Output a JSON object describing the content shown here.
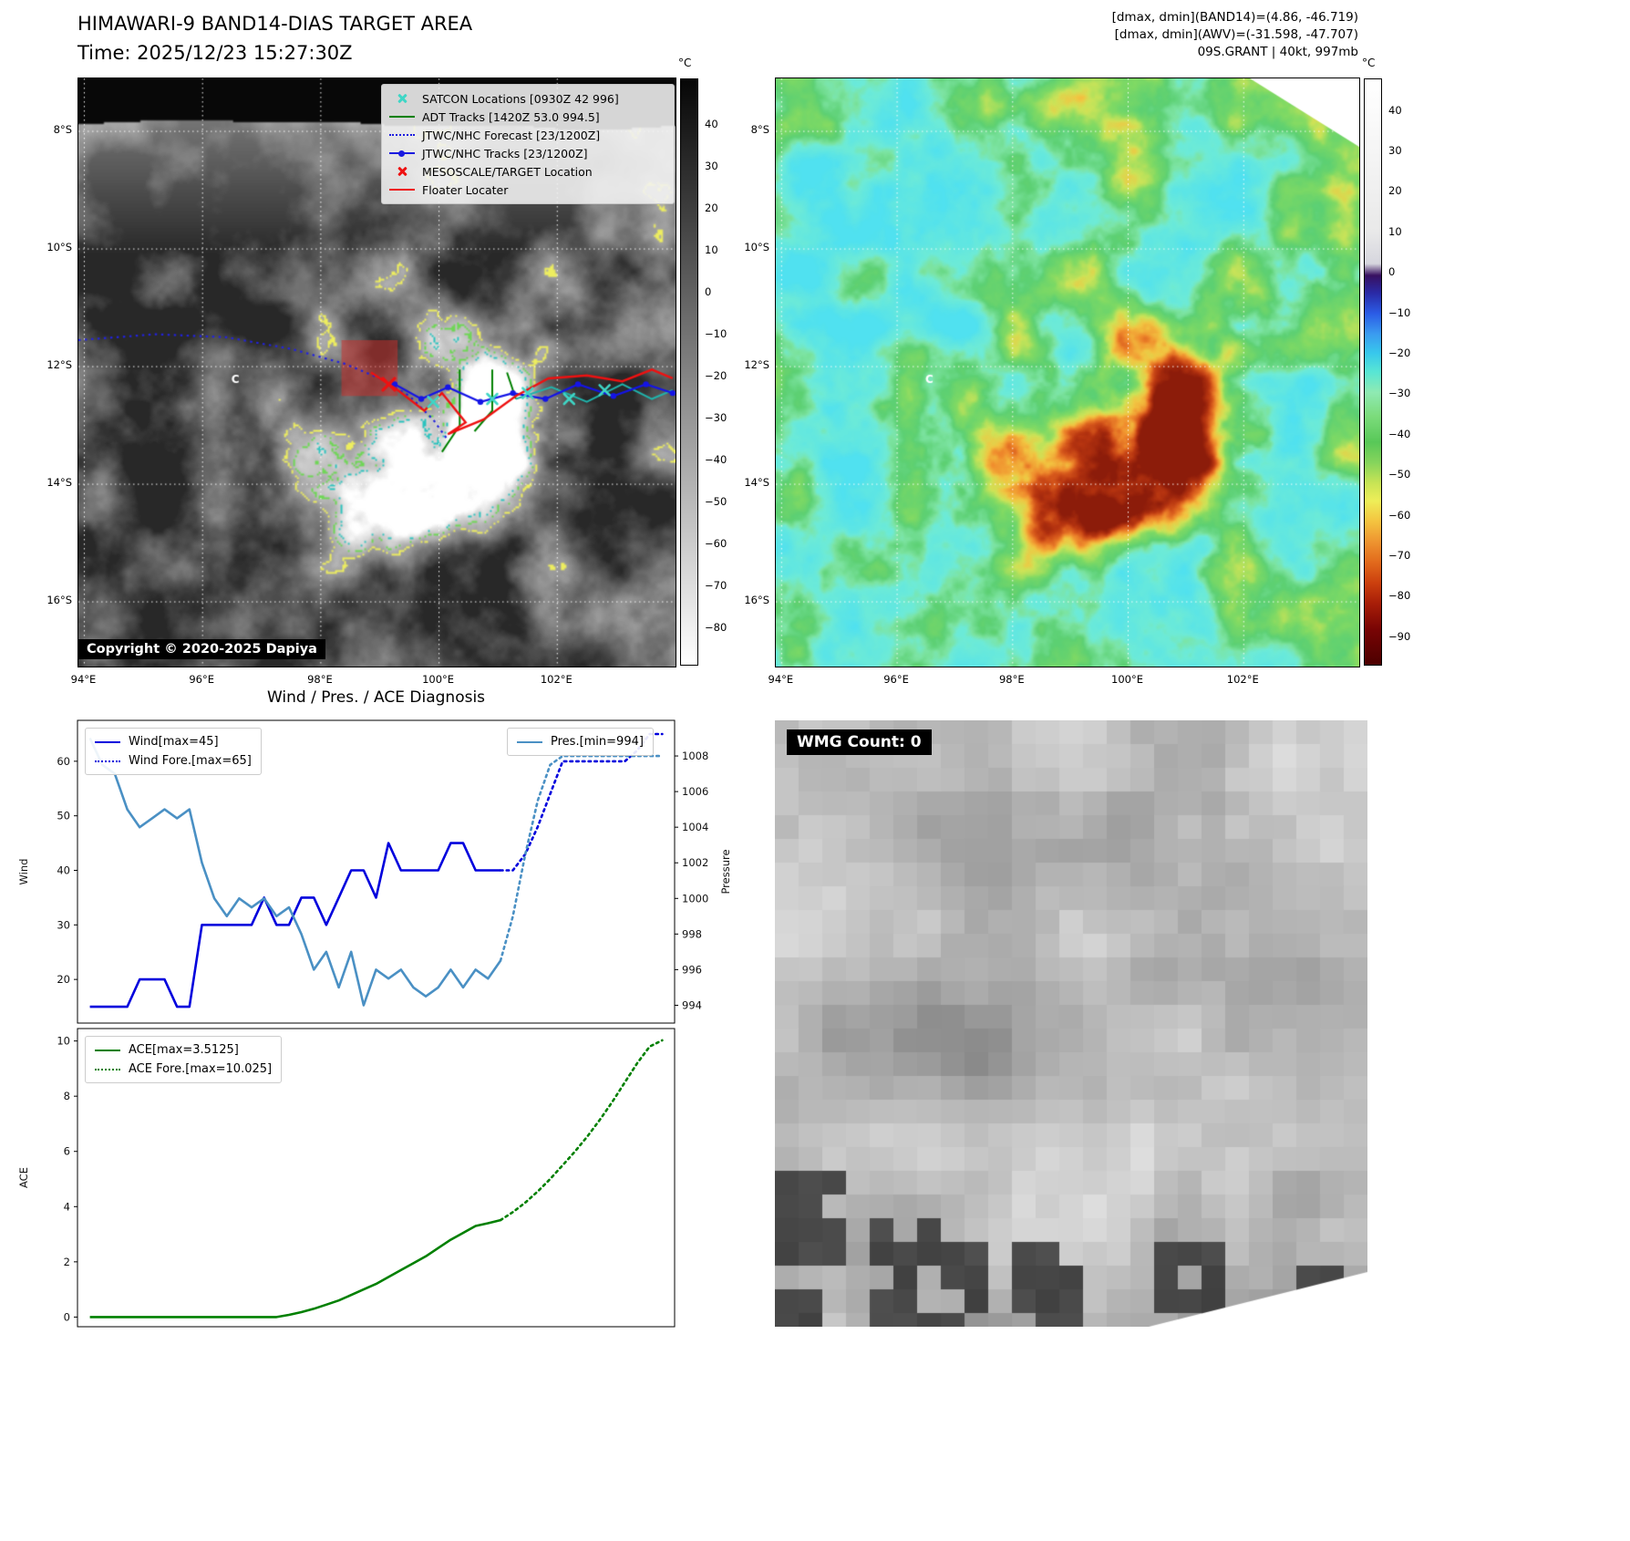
{
  "page": {
    "background": "#ffffff"
  },
  "panel_band14": {
    "title": "HIMAWARI-9 BAND14-DIAS TARGET AREA",
    "subtitle": "Time: 2025/12/23 15:27:30Z",
    "copyright": "Copyright © 2020-2025 Dapiya",
    "legend": [
      {
        "label": "SATCON Locations [0930Z 42 996]",
        "type": "x",
        "color": "#3fd6c6",
        "icon": "satcon-x-icon"
      },
      {
        "label": "ADT Tracks [1420Z 53.0 994.5]",
        "type": "line",
        "color": "#008000",
        "icon": "adt-line-icon"
      },
      {
        "label": "JTWC/NHC Forecast [23/1200Z]",
        "type": "dotted",
        "color": "#1a1ae0",
        "icon": "jtwc-forecast-dotted-icon"
      },
      {
        "label": "JTWC/NHC Tracks [23/1200Z]",
        "type": "line-dot",
        "color": "#1a1ae0",
        "icon": "jtwc-track-line-icon"
      },
      {
        "label": "MESOSCALE/TARGET Location",
        "type": "x",
        "color": "#ee1111",
        "icon": "mesoscale-x-icon"
      },
      {
        "label": "Floater Locater",
        "type": "line",
        "color": "#ee1111",
        "icon": "floater-line-icon"
      }
    ],
    "colorbar": {
      "unit": "°C",
      "ticks": [
        40,
        30,
        20,
        10,
        0,
        -10,
        -20,
        -30,
        -40,
        -50,
        -60,
        -70,
        -80
      ],
      "range": [
        51,
        -89
      ],
      "gradient": [
        [
          0,
          "#060606"
        ],
        [
          1,
          "#ffffff"
        ]
      ]
    },
    "tracks": {
      "target_box": {
        "lon0": 98.35,
        "lat0": 11.55,
        "lon1": 99.3,
        "lat1": 12.5,
        "color": "rgba(200,50,45,0.55)"
      },
      "forecast": {
        "color": "#2222dd",
        "points": [
          [
            93.9,
            11.55
          ],
          [
            95.2,
            11.45
          ],
          [
            96.4,
            11.5
          ],
          [
            97.5,
            11.7
          ],
          [
            98.4,
            11.95
          ],
          [
            99.0,
            12.2
          ],
          [
            99.5,
            12.5
          ],
          [
            99.9,
            12.9
          ],
          [
            100.15,
            13.25
          ]
        ]
      },
      "jtwc": {
        "color": "#1414e6",
        "points": [
          [
            99.25,
            12.3
          ],
          [
            99.7,
            12.55
          ],
          [
            100.15,
            12.35
          ],
          [
            100.7,
            12.6
          ],
          [
            101.25,
            12.45
          ],
          [
            101.8,
            12.55
          ],
          [
            102.35,
            12.3
          ],
          [
            102.95,
            12.5
          ],
          [
            103.5,
            12.3
          ],
          [
            103.95,
            12.45
          ]
        ]
      },
      "floater": {
        "color": "#ee1111",
        "points": [
          [
            98.85,
            12.1
          ],
          [
            99.3,
            12.4
          ],
          [
            99.75,
            12.75
          ],
          [
            100.05,
            12.45
          ],
          [
            100.45,
            12.95
          ],
          [
            100.15,
            13.15
          ],
          [
            100.75,
            12.9
          ],
          [
            101.3,
            12.5
          ],
          [
            101.85,
            12.2
          ],
          [
            102.5,
            12.15
          ],
          [
            103.1,
            12.25
          ],
          [
            103.6,
            12.05
          ],
          [
            103.95,
            12.2
          ]
        ]
      },
      "adt": {
        "color": "#008000",
        "lines": [
          [
            [
              100.35,
              12.05
            ],
            [
              100.35,
              13.0
            ],
            [
              100.05,
              13.45
            ]
          ],
          [
            [
              100.9,
              12.05
            ],
            [
              100.9,
              12.75
            ],
            [
              100.6,
              13.1
            ]
          ],
          [
            [
              101.15,
              12.1
            ],
            [
              101.3,
              12.55
            ]
          ]
        ]
      },
      "adt_ext": {
        "color": "#20b2aa",
        "points": [
          [
            101.3,
            12.55
          ],
          [
            101.9,
            12.35
          ],
          [
            102.5,
            12.6
          ],
          [
            103.1,
            12.3
          ],
          [
            103.6,
            12.55
          ],
          [
            103.95,
            12.4
          ]
        ]
      },
      "satcon": {
        "color": "#3fd6c6",
        "points": [
          [
            99.9,
            12.6
          ],
          [
            100.9,
            12.55
          ],
          [
            101.5,
            12.45
          ],
          [
            102.2,
            12.55
          ],
          [
            102.8,
            12.4
          ]
        ]
      },
      "mesoscale": {
        "color": "#ee1111",
        "point": [
          99.15,
          12.3
        ]
      },
      "center_mark": {
        "label": "C",
        "lon": 96.55,
        "lat": 12.22,
        "color": "#ffffff"
      }
    }
  },
  "panel_awv": {
    "info_lines": [
      "[dmax, dmin](BAND14)=(4.86, -46.719)",
      "[dmax, dmin](AWV)=(-31.598, -47.707)",
      "09S.GRANT | 40kt, 997mb"
    ],
    "colorbar": {
      "unit": "°C",
      "ticks": [
        40,
        30,
        20,
        10,
        0,
        -10,
        -20,
        -30,
        -40,
        -50,
        -60,
        -70,
        -80,
        -90
      ],
      "range": [
        48,
        -97
      ],
      "gradient": [
        [
          0,
          "#ffffff"
        ],
        [
          0.055,
          "#fbfbfb"
        ],
        [
          0.26,
          "#e9e9e9"
        ],
        [
          0.315,
          "#d6d6de"
        ],
        [
          0.335,
          "#381060"
        ],
        [
          0.365,
          "#2a2aa6"
        ],
        [
          0.4,
          "#2b5ce6"
        ],
        [
          0.435,
          "#3a9bf0"
        ],
        [
          0.468,
          "#38c8ec"
        ],
        [
          0.5,
          "#58e6d4"
        ],
        [
          0.535,
          "#8feab2"
        ],
        [
          0.575,
          "#7cdc7c"
        ],
        [
          0.62,
          "#58c858"
        ],
        [
          0.655,
          "#86d45c"
        ],
        [
          0.69,
          "#c8e455"
        ],
        [
          0.72,
          "#eeee58"
        ],
        [
          0.755,
          "#f4c440"
        ],
        [
          0.79,
          "#ee9430"
        ],
        [
          0.825,
          "#e26a1c"
        ],
        [
          0.86,
          "#cc400e"
        ],
        [
          0.895,
          "#a81e08"
        ],
        [
          0.94,
          "#780404"
        ],
        [
          1,
          "#4c0000"
        ]
      ]
    }
  },
  "geo": {
    "lon_range": [
      93.9,
      104.0
    ],
    "lat_range": [
      7.1,
      17.1
    ],
    "lat_ticks": [
      {
        "v": 8,
        "label": "8°S"
      },
      {
        "v": 10,
        "label": "10°S"
      },
      {
        "v": 12,
        "label": "12°S"
      },
      {
        "v": 14,
        "label": "14°S"
      },
      {
        "v": 16,
        "label": "16°S"
      }
    ],
    "lon_ticks": [
      {
        "v": 94,
        "label": "94°E"
      },
      {
        "v": 96,
        "label": "96°E"
      },
      {
        "v": 98,
        "label": "98°E"
      },
      {
        "v": 100,
        "label": "100°E"
      },
      {
        "v": 102,
        "label": "102°E"
      }
    ]
  },
  "chart_data": [
    {
      "type": "line",
      "title": "Wind / Pres. / ACE Diagnosis",
      "name": "wind_pressure",
      "xlim": [
        -1,
        47
      ],
      "left_axis": {
        "label": "Wind",
        "ticks": [
          20,
          30,
          40,
          50,
          60
        ],
        "lim": [
          12,
          67.5
        ]
      },
      "right_axis": {
        "label": "Pressure",
        "ticks": [
          994,
          996,
          998,
          1000,
          1002,
          1004,
          1006,
          1008
        ],
        "lim": [
          993,
          1010
        ]
      },
      "legend": [
        "Wind[max=45]",
        "Wind Fore.[max=65]",
        "Pres.[min=994]"
      ],
      "series": [
        {
          "name": "Wind",
          "color": "#0000dd",
          "style": "solid",
          "axis": "left",
          "x_start": 0,
          "y": [
            15,
            15,
            15,
            15,
            20,
            20,
            20,
            15,
            15,
            30,
            30,
            30,
            30,
            30,
            35,
            30,
            30,
            35,
            35,
            30,
            35,
            40,
            40,
            35,
            45,
            40,
            40,
            40,
            40,
            45,
            45,
            40,
            40,
            40
          ]
        },
        {
          "name": "Wind Fore.",
          "color": "#0000dd",
          "style": "dotted",
          "axis": "left",
          "x_start": 33,
          "y": [
            40,
            40,
            43,
            48,
            54,
            60,
            60,
            60,
            60,
            60,
            60,
            62,
            65,
            65
          ]
        },
        {
          "name": "Pres.",
          "color": "#4a90c4",
          "style": "solid",
          "axis": "right",
          "x_start": 0,
          "y": [
            1009,
            1007.5,
            1007,
            1005,
            1004,
            1004.5,
            1005,
            1004.5,
            1005,
            1002,
            1000,
            999,
            1000,
            999.5,
            1000,
            999,
            999.5,
            998,
            996,
            997,
            995,
            997,
            994,
            996,
            995.5,
            996,
            995,
            994.5,
            995,
            996,
            995,
            996,
            995.5,
            996.5
          ]
        },
        {
          "name": "Pres. Fore.",
          "color": "#4a90c4",
          "style": "dotted",
          "axis": "right",
          "x_start": 33,
          "y": [
            996.5,
            999,
            1002.5,
            1005.5,
            1007.5,
            1008,
            1008,
            1008,
            1008,
            1008,
            1008,
            1008,
            1008,
            1008
          ]
        }
      ]
    },
    {
      "type": "line",
      "name": "ace",
      "xlim": [
        -1,
        47
      ],
      "left_axis": {
        "label": "ACE",
        "ticks": [
          0,
          2,
          4,
          6,
          8,
          10
        ],
        "lim": [
          -0.35,
          10.45
        ]
      },
      "legend": [
        "ACE[max=3.5125]",
        "ACE Fore.[max=10.025]"
      ],
      "series": [
        {
          "name": "ACE",
          "color": "#008000",
          "style": "solid",
          "axis": "left",
          "x_start": 0,
          "y": [
            0,
            0,
            0,
            0,
            0,
            0,
            0,
            0,
            0,
            0,
            0,
            0,
            0,
            0,
            0,
            0,
            0.08,
            0.18,
            0.3,
            0.45,
            0.6,
            0.8,
            1,
            1.2,
            1.45,
            1.7,
            1.95,
            2.2,
            2.5,
            2.8,
            3.05,
            3.3,
            3.4,
            3.5125
          ]
        },
        {
          "name": "ACE Fore.",
          "color": "#008000",
          "style": "dotted",
          "axis": "left",
          "x_start": 33,
          "y": [
            3.5125,
            3.8,
            4.15,
            4.55,
            5,
            5.5,
            6,
            6.55,
            7.15,
            7.8,
            8.5,
            9.2,
            9.8,
            10.025
          ]
        }
      ]
    }
  ],
  "wmg": {
    "label": "WMG Count: 0"
  }
}
